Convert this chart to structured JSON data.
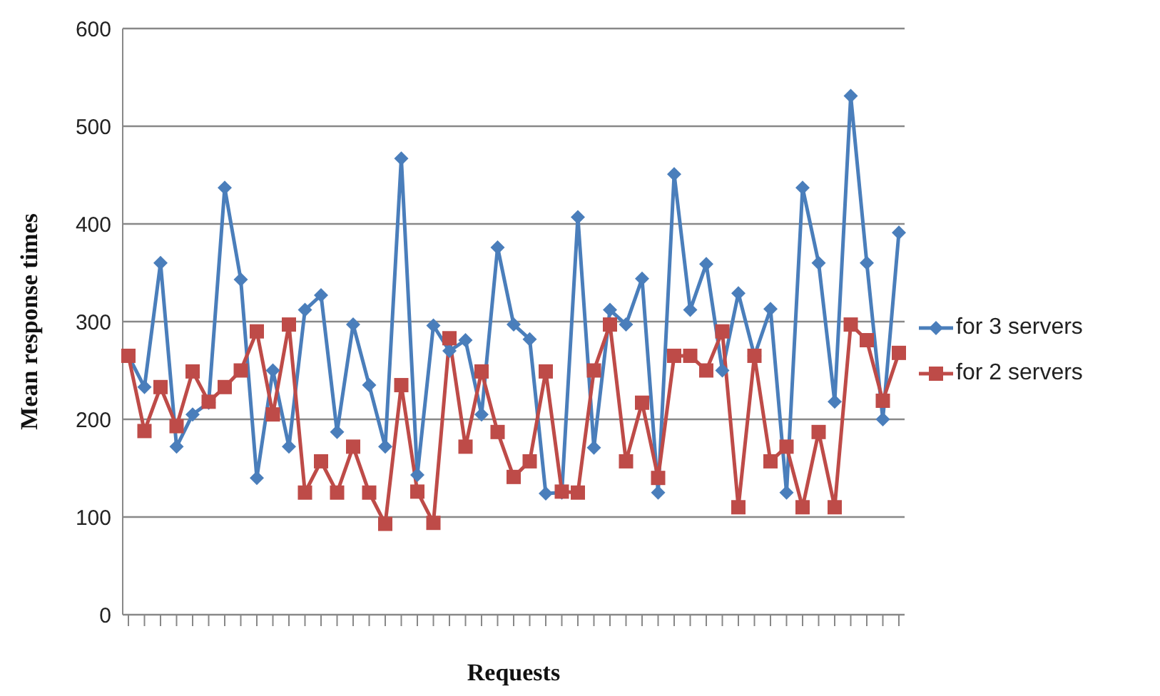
{
  "chart_data": {
    "type": "line",
    "xlabel": "Requests",
    "ylabel": "Mean response times",
    "categories": [
      null,
      null,
      null,
      null,
      null,
      null,
      null,
      null,
      null,
      null,
      null,
      null,
      null,
      null,
      null,
      null,
      null,
      null,
      null,
      null,
      null,
      null,
      null,
      null,
      null,
      null,
      null,
      null,
      null,
      null,
      null,
      null,
      null,
      null,
      null,
      null,
      null,
      null,
      null,
      null,
      null,
      null,
      null,
      null,
      null,
      null,
      null,
      null,
      null
    ],
    "series": [
      {
        "name": "for 3 servers",
        "color": "#4a7ebb",
        "marker": "diamond",
        "values": [
          265,
          233,
          360,
          172,
          205,
          217,
          437,
          343,
          140,
          250,
          172,
          312,
          327,
          187,
          297,
          235,
          172,
          467,
          143,
          296,
          270,
          281,
          205,
          376,
          297,
          282,
          124,
          125,
          407,
          171,
          312,
          297,
          344,
          125,
          451,
          312,
          359,
          250,
          329,
          265,
          313,
          125,
          437,
          360,
          218,
          531,
          360,
          200,
          391
        ]
      },
      {
        "name": "for 2 servers",
        "color": "#be4b48",
        "marker": "square",
        "values": [
          265,
          188,
          233,
          193,
          249,
          218,
          233,
          250,
          290,
          205,
          297,
          125,
          157,
          125,
          172,
          125,
          93,
          235,
          126,
          94,
          283,
          172,
          249,
          187,
          141,
          157,
          249,
          126,
          125,
          250,
          297,
          157,
          217,
          140,
          265,
          265,
          250,
          290,
          110,
          265,
          157,
          172,
          110,
          187,
          110,
          297,
          281,
          219,
          268
        ]
      }
    ],
    "ylim": [
      0,
      600
    ],
    "yticks": [
      0,
      100,
      200,
      300,
      400,
      500,
      600
    ],
    "grid": "y",
    "legend": "right"
  }
}
